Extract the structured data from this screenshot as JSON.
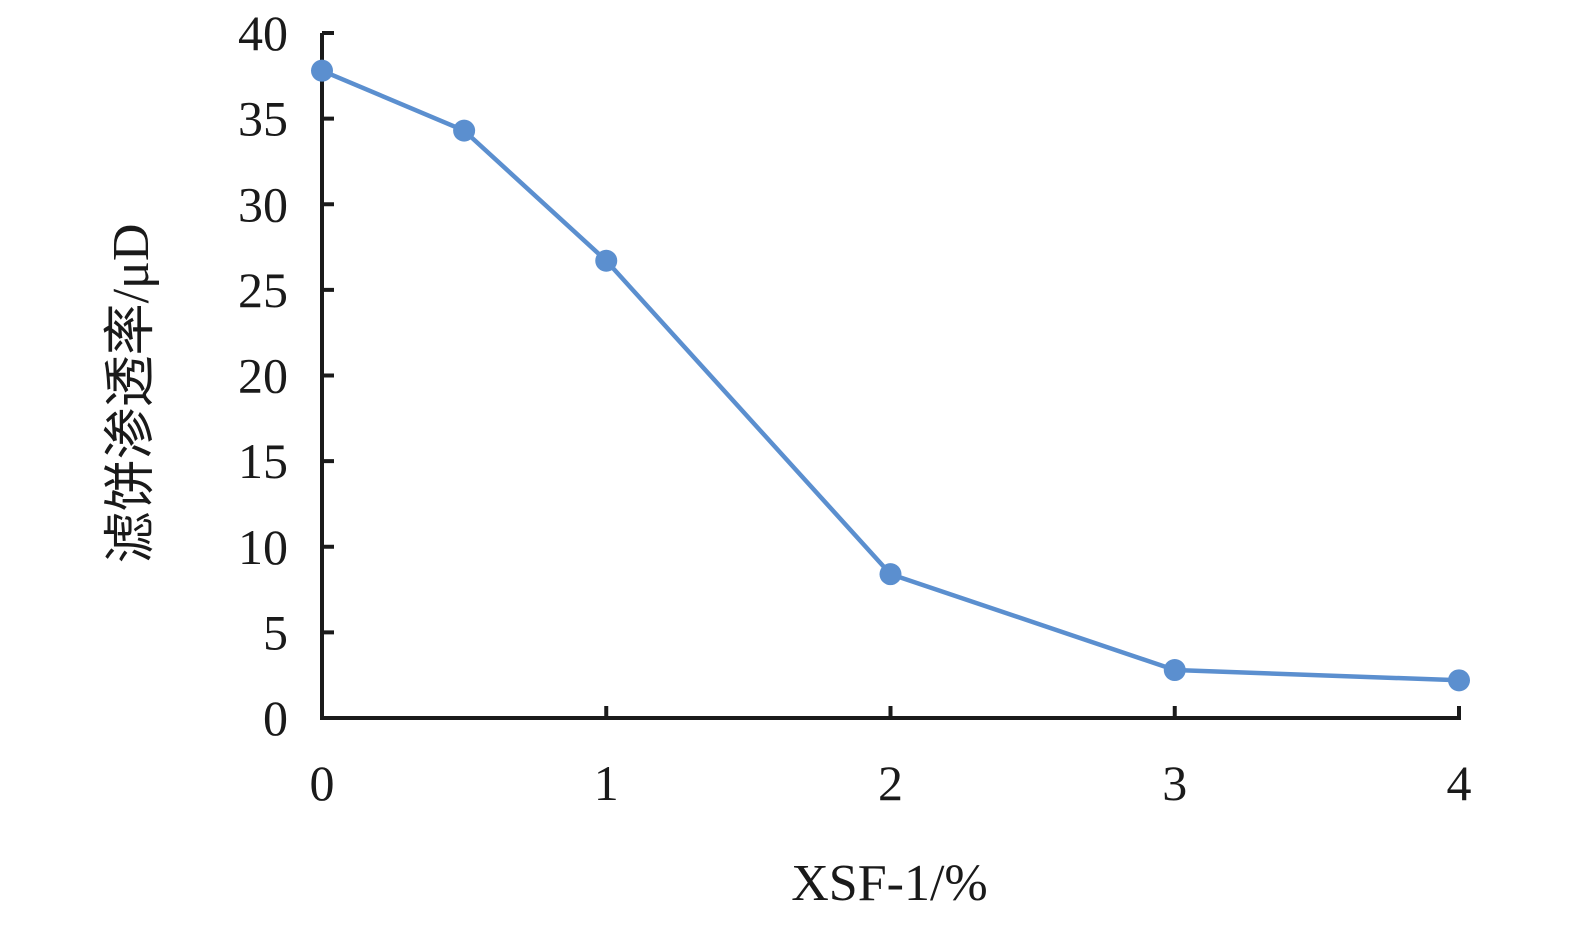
{
  "chart_data": {
    "type": "line",
    "title": "",
    "xlabel": "XSF-1/%",
    "ylabel": "滤饼渗透率/μD",
    "xlim": [
      0,
      4
    ],
    "ylim": [
      0,
      40
    ],
    "x_ticks": [
      0,
      1,
      2,
      3,
      4
    ],
    "x_tick_labels": [
      "0",
      "1",
      "2",
      "3",
      "4"
    ],
    "y_ticks": [
      0,
      5,
      10,
      15,
      20,
      25,
      30,
      35,
      40
    ],
    "y_tick_labels": [
      "0",
      "5",
      "10",
      "15",
      "20",
      "25",
      "30",
      "35",
      "40"
    ],
    "grid": false,
    "legend": "none",
    "series": [
      {
        "color": "#5b8fcf",
        "x": [
          0,
          0.5,
          1,
          2,
          3,
          4
        ],
        "y": [
          37.8,
          34.3,
          26.7,
          8.4,
          2.8,
          2.2
        ]
      }
    ]
  }
}
